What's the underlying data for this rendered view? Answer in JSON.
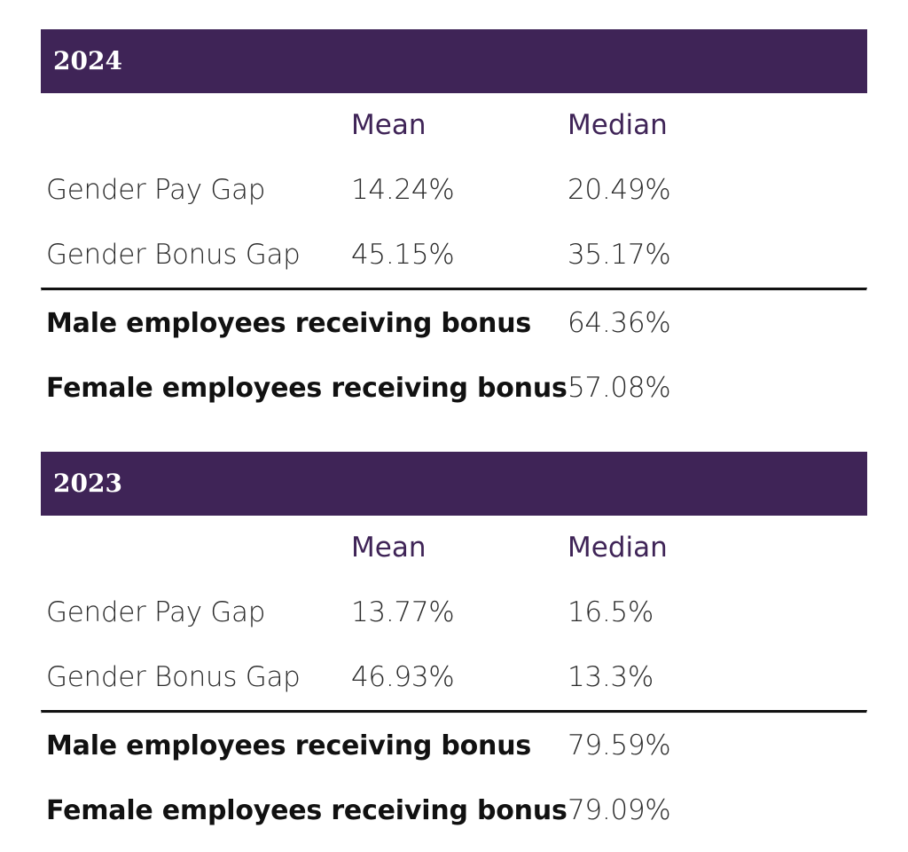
{
  "sections": [
    {
      "year": "2024",
      "columns": {
        "mean": "Mean",
        "median": "Median"
      },
      "gaps": [
        {
          "label": "Gender Pay Gap",
          "mean": "14.24%",
          "median": "20.49%"
        },
        {
          "label": "Gender Bonus Gap",
          "mean": "45.15%",
          "median": "35.17%"
        }
      ],
      "bonus": [
        {
          "label": "Male employees receiving bonus",
          "value": "64.36%"
        },
        {
          "label": "Female employees receiving bonus",
          "value": "57.08%"
        }
      ]
    },
    {
      "year": "2023",
      "columns": {
        "mean": "Mean",
        "median": "Median"
      },
      "gaps": [
        {
          "label": "Gender Pay Gap",
          "mean": "13.77%",
          "median": "16.5%"
        },
        {
          "label": "Gender Bonus Gap",
          "mean": "46.93%",
          "median": "13.3%"
        }
      ],
      "bonus": [
        {
          "label": "Male employees receiving bonus",
          "value": "79.59%"
        },
        {
          "label": "Female employees receiving bonus",
          "value": "79.09%"
        }
      ]
    }
  ],
  "colors": {
    "header_bg": "#3f2457",
    "header_text": "#ffffff",
    "column_head": "#3f2457"
  }
}
